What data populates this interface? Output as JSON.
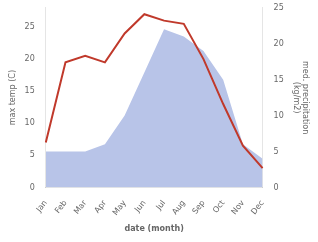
{
  "chart_data": {
    "type": "line",
    "categories": [
      "Jan",
      "Feb",
      "Mar",
      "Apr",
      "May",
      "Jun",
      "Jul",
      "Aug",
      "Sep",
      "Oct",
      "Nov",
      "Dec"
    ],
    "series": [
      {
        "type": "area",
        "axis": "y2",
        "color": "#b8c4e8",
        "values": [
          5,
          5,
          5,
          6,
          10,
          16,
          22,
          21,
          19,
          15,
          6,
          4
        ]
      },
      {
        "type": "line",
        "color": "#c0392b",
        "values": [
          7,
          19.5,
          20.5,
          19.5,
          24,
          27,
          26,
          25.5,
          20,
          13,
          6.5,
          3
        ]
      }
    ],
    "xlabel": "date (month)",
    "ylabel": "max temp (C)",
    "y2label": "med. precipitation\n(kg/m2)",
    "ylim": [
      0,
      28
    ],
    "yticks": [
      0,
      5,
      10,
      15,
      20,
      25
    ],
    "y2lim": [
      0,
      25
    ],
    "y2ticks": [
      0,
      5,
      10,
      15,
      20,
      25
    ],
    "grid": false
  }
}
